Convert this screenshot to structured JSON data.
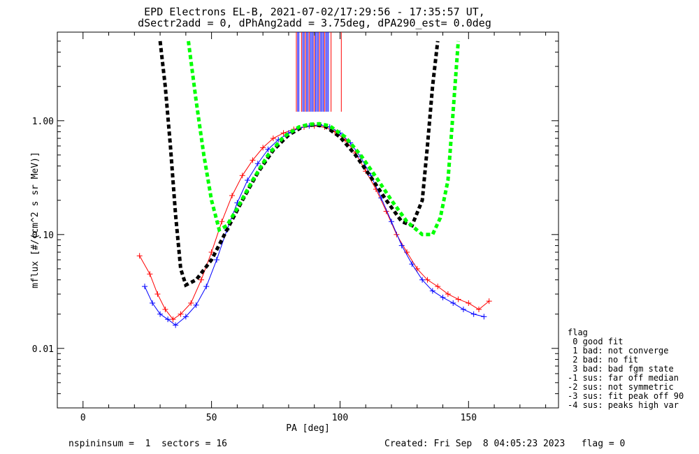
{
  "chart_data": {
    "type": "scatter",
    "title": "EPD Electrons EL-B, 2021-07-02/17:29:56 - 17:35:57 UT,",
    "subtitle": "dSectr2add = 0, dPhAng2add = 3.75deg, dPA290_est=   0.0deg",
    "xlabel": "PA [deg]",
    "ylabel": "mflux [#/(cm^2 s sr MeV)]",
    "xlim": [
      -10,
      185
    ],
    "ylim": [
      0.003,
      6.0
    ],
    "yscale": "log",
    "xticks": [
      0,
      50,
      100,
      150
    ],
    "xtick_labels": [
      "0",
      "50",
      "100",
      "150"
    ],
    "yticks": [
      0.01,
      0.1,
      1.0
    ],
    "ytick_labels": [
      "0.01",
      "0.10",
      "1.00"
    ],
    "grid": false,
    "legend_position": "right-bottom",
    "series": [
      {
        "color": "#ff0000",
        "x": [
          22,
          26,
          29,
          32,
          35,
          38,
          42,
          46,
          50,
          54,
          58,
          62,
          66,
          70,
          74,
          78,
          82,
          86,
          90,
          94,
          98,
          102,
          106,
          110,
          114,
          118,
          122,
          126,
          130,
          134,
          138,
          142,
          146,
          150,
          154,
          158
        ],
        "y": [
          0.065,
          0.045,
          0.03,
          0.022,
          0.018,
          0.02,
          0.025,
          0.04,
          0.07,
          0.13,
          0.22,
          0.33,
          0.45,
          0.58,
          0.7,
          0.78,
          0.84,
          0.88,
          0.9,
          0.88,
          0.8,
          0.68,
          0.52,
          0.36,
          0.25,
          0.16,
          0.1,
          0.07,
          0.05,
          0.04,
          0.035,
          0.03,
          0.027,
          0.025,
          0.022,
          0.026
        ]
      },
      {
        "color": "#0000ff",
        "x": [
          24,
          27,
          30,
          33,
          36,
          40,
          44,
          48,
          52,
          56,
          60,
          64,
          68,
          72,
          76,
          80,
          84,
          88,
          92,
          96,
          100,
          104,
          108,
          112,
          116,
          120,
          124,
          128,
          132,
          136,
          140,
          144,
          148,
          152,
          156
        ],
        "y": [
          0.035,
          0.025,
          0.02,
          0.018,
          0.016,
          0.019,
          0.024,
          0.035,
          0.06,
          0.11,
          0.19,
          0.3,
          0.42,
          0.56,
          0.68,
          0.78,
          0.86,
          0.9,
          0.92,
          0.88,
          0.78,
          0.64,
          0.48,
          0.33,
          0.21,
          0.13,
          0.08,
          0.055,
          0.04,
          0.032,
          0.028,
          0.025,
          0.022,
          0.02,
          0.019
        ]
      },
      {
        "style": "dashed",
        "color": "#000000",
        "x": [
          30,
          32,
          34,
          36,
          38,
          40,
          44,
          50,
          56,
          62,
          68,
          74,
          80,
          86,
          90,
          94,
          100,
          106,
          112,
          118,
          124,
          128,
          132,
          134,
          136,
          138
        ],
        "y": [
          5.0,
          2.0,
          0.6,
          0.15,
          0.05,
          0.036,
          0.04,
          0.06,
          0.11,
          0.2,
          0.35,
          0.55,
          0.75,
          0.9,
          0.92,
          0.9,
          0.72,
          0.5,
          0.32,
          0.2,
          0.13,
          0.12,
          0.2,
          0.6,
          2.0,
          5.0
        ]
      },
      {
        "style": "dashed",
        "color": "#00ff00",
        "x": [
          41,
          44,
          47,
          50,
          53,
          56,
          60,
          66,
          72,
          78,
          84,
          88,
          92,
          96,
          102,
          108,
          114,
          120,
          126,
          132,
          136,
          139,
          142,
          144,
          146
        ],
        "y": [
          5.0,
          1.5,
          0.5,
          0.2,
          0.11,
          0.12,
          0.17,
          0.3,
          0.5,
          0.72,
          0.88,
          0.93,
          0.94,
          0.9,
          0.72,
          0.5,
          0.32,
          0.2,
          0.13,
          0.1,
          0.1,
          0.14,
          0.3,
          1.2,
          5.0
        ]
      }
    ],
    "vertical_lines": {
      "y_from": 1.2,
      "y_to": 6.0,
      "x": [
        83.0,
        83.5,
        84.0,
        85.0,
        85.5,
        86.0,
        86.5,
        87.0,
        87.5,
        88.0,
        88.5,
        89.0,
        89.5,
        90.0,
        90.5,
        91.0,
        91.5,
        92.0,
        92.5,
        93.0,
        93.5,
        94.0,
        94.5,
        95.0,
        95.5,
        96.5,
        100.5
      ],
      "colors": [
        "#ff0000",
        "#0000ff",
        "#0000ff",
        "#ff0000",
        "#0000ff",
        "#0000ff",
        "#ff0000",
        "#0000ff",
        "#0000ff",
        "#ff0000",
        "#0000ff",
        "#0000ff",
        "#0000ff",
        "#ff0000",
        "#0000ff",
        "#0000ff",
        "#0000ff",
        "#ff0000",
        "#0000ff",
        "#0000ff",
        "#0000ff",
        "#ff0000",
        "#0000ff",
        "#0000ff",
        "#0000ff",
        "#ff0000",
        "#ff0000"
      ]
    },
    "legend": {
      "title": "flag",
      "entries": [
        " 0 good fit",
        " 1 bad: not converge",
        " 2 bad: no fit",
        " 3 bad: bad fgm state",
        "-1 sus: far off median",
        "-2 sus: not symmetric",
        "-3 sus: fit peak off 90",
        "-4 sus: peaks high var"
      ]
    },
    "footer_left": "nspininsum =  1  sectors = 16",
    "footer_right": "Created: Fri Sep  8 04:05:23 2023   flag = 0"
  }
}
